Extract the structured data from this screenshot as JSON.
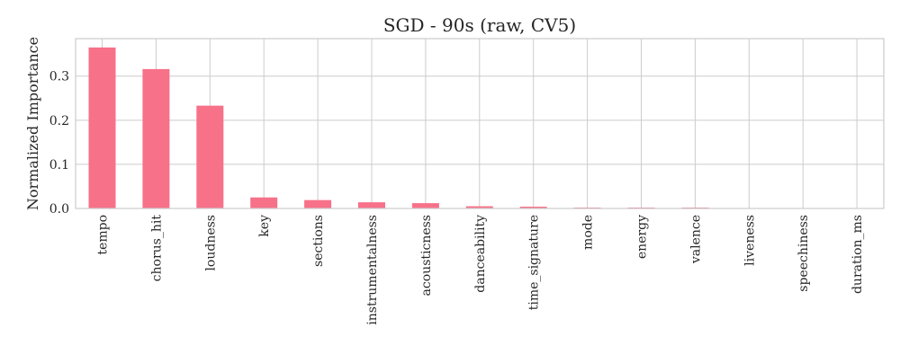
{
  "chart_data": {
    "type": "bar",
    "title": "SGD - 90s (raw, CV5)",
    "xlabel": "",
    "ylabel": "Normalized Importance",
    "categories": [
      "tempo",
      "chorus_hit",
      "loudness",
      "key",
      "sections",
      "instrumentalness",
      "acousticness",
      "danceability",
      "time_signature",
      "mode",
      "energy",
      "valence",
      "liveness",
      "speechiness",
      "duration_ms"
    ],
    "values": [
      0.365,
      0.316,
      0.233,
      0.025,
      0.019,
      0.014,
      0.012,
      0.005,
      0.004,
      0.002,
      0.002,
      0.002,
      0.0,
      0.0,
      0.0
    ],
    "ylim": [
      0,
      0.385
    ],
    "yticks": [
      0.0,
      0.1,
      0.2,
      0.3
    ],
    "ytick_labels": [
      "0.0",
      "0.1",
      "0.2",
      "0.3"
    ],
    "grid": true,
    "legend": "none",
    "bar_color": "#f77189"
  }
}
